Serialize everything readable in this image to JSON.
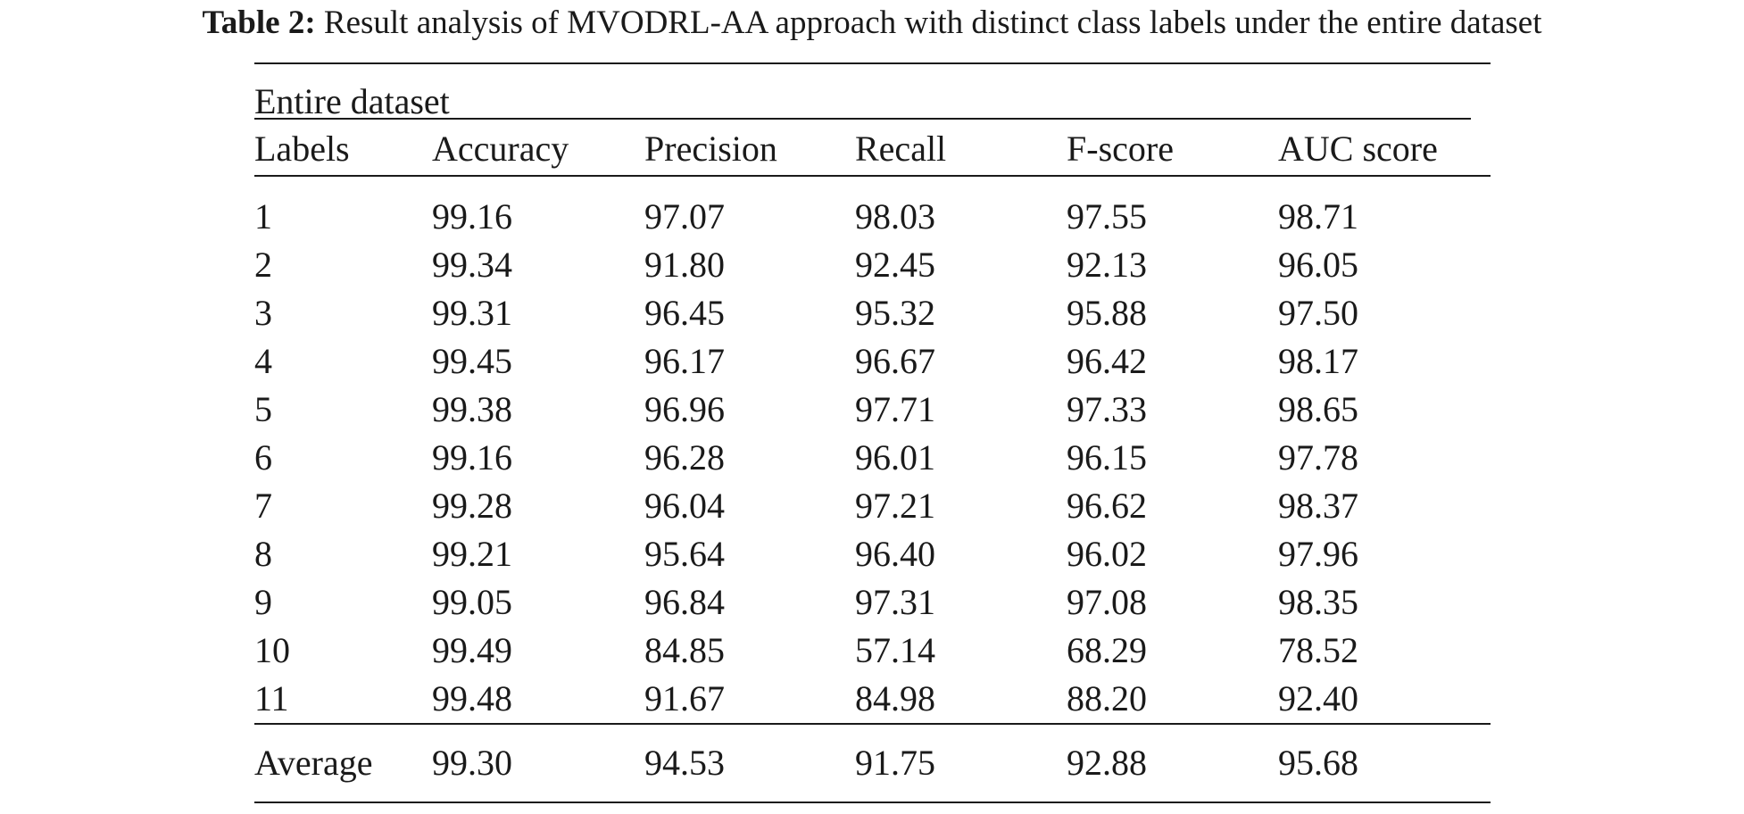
{
  "caption": {
    "label": "Table 2:",
    "text": " Result analysis of MVODRL-AA approach with distinct class labels under the entire dataset"
  },
  "table": {
    "group_header": "Entire dataset",
    "headers": [
      "Labels",
      "Accuracy",
      "Precision",
      "Recall",
      "F-score",
      "AUC score"
    ],
    "rows": [
      [
        "1",
        "99.16",
        "97.07",
        "98.03",
        "97.55",
        "98.71"
      ],
      [
        "2",
        "99.34",
        "91.80",
        "92.45",
        "92.13",
        "96.05"
      ],
      [
        "3",
        "99.31",
        "96.45",
        "95.32",
        "95.88",
        "97.50"
      ],
      [
        "4",
        "99.45",
        "96.17",
        "96.67",
        "96.42",
        "98.17"
      ],
      [
        "5",
        "99.38",
        "96.96",
        "97.71",
        "97.33",
        "98.65"
      ],
      [
        "6",
        "99.16",
        "96.28",
        "96.01",
        "96.15",
        "97.78"
      ],
      [
        "7",
        "99.28",
        "96.04",
        "97.21",
        "96.62",
        "98.37"
      ],
      [
        "8",
        "99.21",
        "95.64",
        "96.40",
        "96.02",
        "97.96"
      ],
      [
        "9",
        "99.05",
        "96.84",
        "97.31",
        "97.08",
        "98.35"
      ],
      [
        "10",
        "99.49",
        "84.85",
        "57.14",
        "68.29",
        "78.52"
      ],
      [
        "11",
        "99.48",
        "91.67",
        "84.98",
        "88.20",
        "92.40"
      ]
    ],
    "average": [
      "Average",
      "99.30",
      "94.53",
      "91.75",
      "92.88",
      "95.68"
    ]
  }
}
